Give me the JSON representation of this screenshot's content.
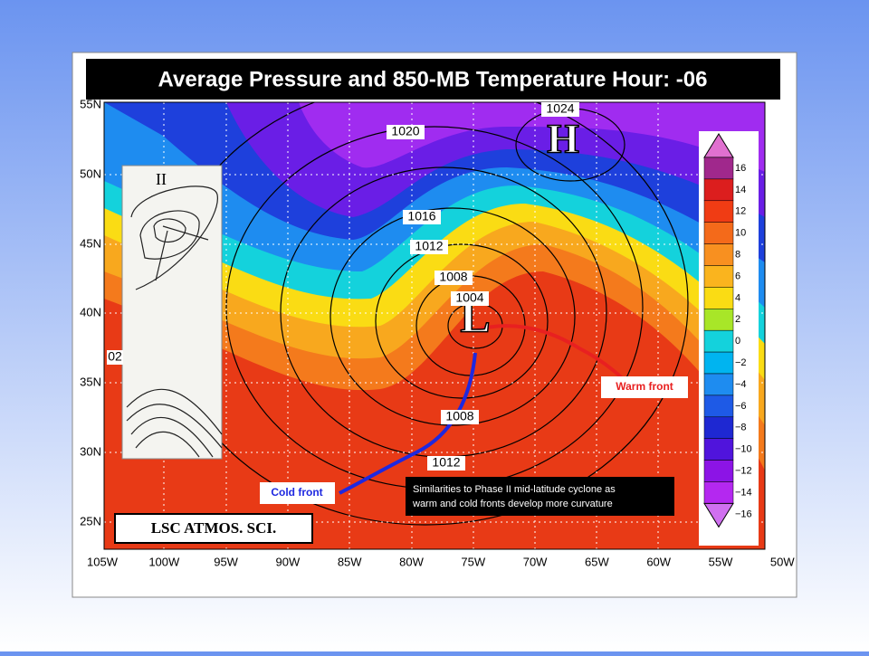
{
  "title": "Average Pressure and 850-MB Temperature Hour: -06",
  "latitudes": [
    "55N",
    "50N",
    "45N",
    "40N",
    "35N",
    "30N",
    "25N"
  ],
  "longitudes": [
    "105W",
    "100W",
    "95W",
    "90W",
    "85W",
    "80W",
    "75W",
    "70W",
    "65W",
    "60W",
    "55W",
    "50W"
  ],
  "isobar_labels": [
    "1024",
    "1020",
    "1016",
    "1012",
    "1008",
    "1004",
    "1008",
    "1012",
    "02"
  ],
  "high_label": "H",
  "low_label": "L",
  "inset_label": "II",
  "colorbar_labels": [
    "16",
    "14",
    "12",
    "10",
    "8",
    "6",
    "4",
    "2",
    "0",
    "−2",
    "−4",
    "−6",
    "−8",
    "−10",
    "−12",
    "−14",
    "−16"
  ],
  "warm_front": "Warm front",
  "cold_front": "Cold front",
  "caption": [
    "Similarities to Phase II mid-latitude cyclone as",
    "warm and cold fronts develop more curvature"
  ],
  "credit": "LSC  ATMOS.  SCI."
}
